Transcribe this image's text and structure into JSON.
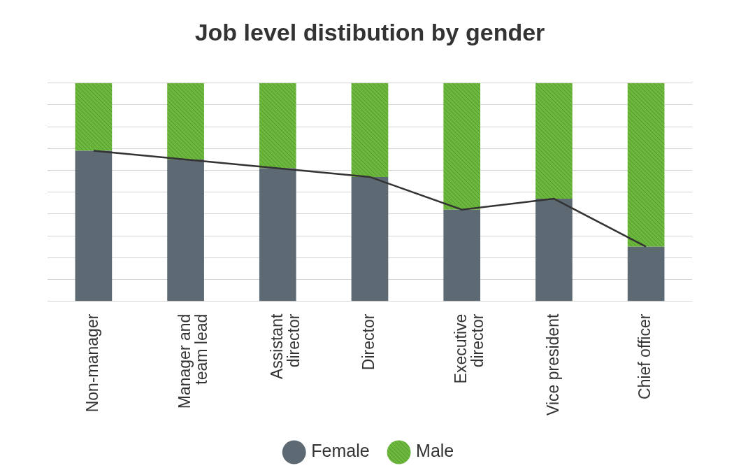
{
  "chart_data": {
    "type": "bar",
    "title": "Job level distibution by gender",
    "categories": [
      "Non-manager",
      "Manager and team lead",
      "Assistant director",
      "Director",
      "Executive director",
      "Vice president",
      "Chief officer"
    ],
    "series": [
      {
        "name": "Female",
        "color": "#5d6a73",
        "values": [
          69,
          65,
          61,
          57,
          42,
          47,
          25
        ],
        "line_style": "solid"
      },
      {
        "name": "Male",
        "color": "#6cb83c",
        "values": [
          31,
          35,
          39,
          43,
          58,
          53,
          75
        ]
      }
    ],
    "stacked": true,
    "ylim": [
      0,
      100
    ],
    "yticks": [
      0,
      10,
      20,
      30,
      40,
      50,
      60,
      70,
      80,
      90,
      100
    ],
    "grid": true,
    "tick_labels": "x",
    "legend": "bottom"
  }
}
